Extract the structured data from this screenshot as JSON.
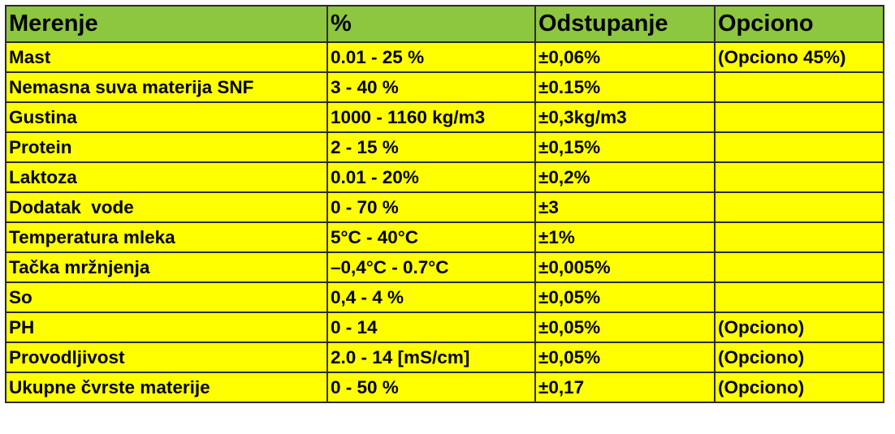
{
  "headers": [
    "Merenje",
    "%",
    "Odstupanje",
    "Opciono"
  ],
  "rows": [
    [
      "Mast",
      "0.01 - 25 %",
      "±0,06%",
      "(Opciono 45%)"
    ],
    [
      "Nemasna suva materija SNF",
      "3 - 40 %",
      "±0.15%",
      ""
    ],
    [
      "Gustina",
      "1000 - 1160 kg/m3",
      "±0,3kg/m3",
      ""
    ],
    [
      "Protein",
      "2 - 15 %",
      "±0,15%",
      ""
    ],
    [
      "Laktoza",
      "0.01 - 20%",
      "±0,2%",
      ""
    ],
    [
      "Dodatak  vode",
      "0 - 70 %",
      "±3",
      ""
    ],
    [
      "Temperatura mleka",
      "5°C - 40°C",
      "±1%",
      ""
    ],
    [
      "Tačka mržnjenja",
      "–0,4°C - 0.7°C",
      "±0,005%",
      ""
    ],
    [
      "So",
      "0,4 - 4 %",
      "±0,05%",
      ""
    ],
    [
      "PH",
      "0 - 14",
      "±0,05%",
      "(Opciono)"
    ],
    [
      "Provodljivost",
      "2.0 - 14 [mS/cm]",
      "±0,05%",
      "(Opciono)"
    ],
    [
      "Ukupne čvrste materije",
      "0 - 50 %",
      "±0,17",
      "(Opciono)"
    ]
  ],
  "colors": {
    "header_bg": "#8dc63f",
    "cell_bg": "#ffff00",
    "border": "#2b2b2b",
    "text": "#000000"
  }
}
